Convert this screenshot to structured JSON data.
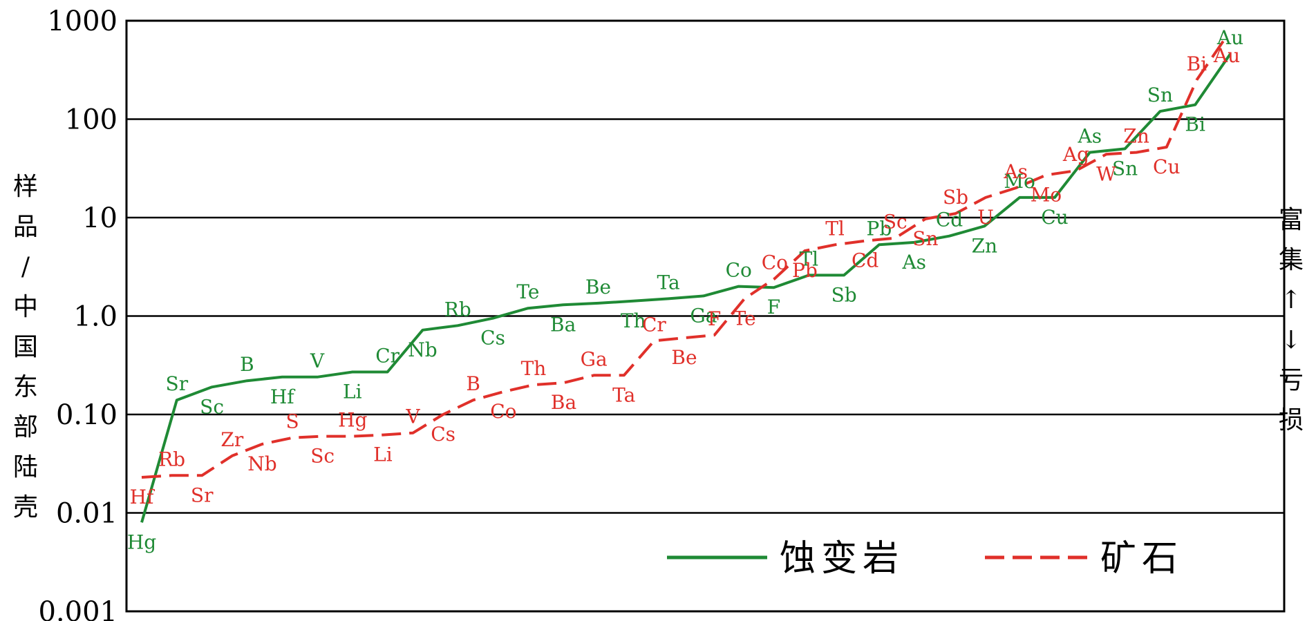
{
  "chart_data": {
    "type": "line",
    "scale": "log",
    "ylim": [
      0.001,
      1000
    ],
    "y_ticks": [
      "1000",
      "100",
      "10",
      "1.0",
      "0.10",
      "0.01",
      "0.001"
    ],
    "ylabel_chars": [
      "样",
      "品",
      "/",
      "中",
      "国",
      "东",
      "部",
      "陆",
      "壳"
    ],
    "right_label_chars": [
      "富",
      "集",
      "↑",
      "↓",
      "亏",
      "损"
    ],
    "grid": true,
    "legend_position": "bottom-right",
    "colors": {
      "altered_rock": "#1f8a35",
      "ore": "#e0302a"
    },
    "series": [
      {
        "name": "蚀变岩",
        "style": "solid",
        "points": [
          {
            "label": "Hg",
            "value": 0.008
          },
          {
            "label": "Sr",
            "value": 0.14
          },
          {
            "label": "Sc",
            "value": 0.19
          },
          {
            "label": "B",
            "value": 0.22
          },
          {
            "label": "Hf",
            "value": 0.24
          },
          {
            "label": "V",
            "value": 0.24
          },
          {
            "label": "Li",
            "value": 0.27
          },
          {
            "label": "Cr",
            "value": 0.27
          },
          {
            "label": "Nb",
            "value": 0.72
          },
          {
            "label": "Rb",
            "value": 0.8
          },
          {
            "label": "Cs",
            "value": 0.95
          },
          {
            "label": "Te",
            "value": 1.2
          },
          {
            "label": "Ba",
            "value": 1.3
          },
          {
            "label": "Be",
            "value": 1.35
          },
          {
            "label": "Th",
            "value": 1.42
          },
          {
            "label": "Ta",
            "value": 1.5
          },
          {
            "label": "Ga",
            "value": 1.6
          },
          {
            "label": "Co",
            "value": 2.0
          },
          {
            "label": "F",
            "value": 1.95
          },
          {
            "label": "Tl",
            "value": 2.6
          },
          {
            "label": "Sb",
            "value": 2.6
          },
          {
            "label": "Pb",
            "value": 5.3
          },
          {
            "label": "As",
            "value": 5.6
          },
          {
            "label": "Cd",
            "value": 6.5
          },
          {
            "label": "Zn",
            "value": 8.2
          },
          {
            "label": "Mo",
            "value": 16
          },
          {
            "label": "Cu",
            "value": 16
          },
          {
            "label": "As",
            "value": 46
          },
          {
            "label": "Sn",
            "value": 50
          },
          {
            "label": "Sn",
            "value": 120
          },
          {
            "label": "Bi",
            "value": 140
          },
          {
            "label": "Au",
            "value": 460
          }
        ]
      },
      {
        "name": "矿石",
        "style": "dashed",
        "points": [
          {
            "label": "Hf",
            "value": 0.023
          },
          {
            "label": "Rb",
            "value": 0.024
          },
          {
            "label": "Sr",
            "value": 0.024
          },
          {
            "label": "Zr",
            "value": 0.038
          },
          {
            "label": "Nb",
            "value": 0.05
          },
          {
            "label": "S",
            "value": 0.058
          },
          {
            "label": "Sc",
            "value": 0.06
          },
          {
            "label": "Hg",
            "value": 0.06
          },
          {
            "label": "Li",
            "value": 0.062
          },
          {
            "label": "V",
            "value": 0.065
          },
          {
            "label": "Cs",
            "value": 0.1
          },
          {
            "label": "B",
            "value": 0.14
          },
          {
            "label": "Co",
            "value": 0.17
          },
          {
            "label": "Th",
            "value": 0.2
          },
          {
            "label": "Ba",
            "value": 0.21
          },
          {
            "label": "Ga",
            "value": 0.25
          },
          {
            "label": "Ta",
            "value": 0.25
          },
          {
            "label": "Cr",
            "value": 0.56
          },
          {
            "label": "Be",
            "value": 0.6
          },
          {
            "label": "F",
            "value": 0.64
          },
          {
            "label": "Te",
            "value": 1.5
          },
          {
            "label": "Co",
            "value": 2.4
          },
          {
            "label": "Pb",
            "value": 4.6
          },
          {
            "label": "Tl",
            "value": 5.3
          },
          {
            "label": "Cd",
            "value": 5.8
          },
          {
            "label": "Sc",
            "value": 6.2
          },
          {
            "label": "Sn",
            "value": 9.7
          },
          {
            "label": "Sb",
            "value": 11
          },
          {
            "label": "U",
            "value": 16
          },
          {
            "label": "As",
            "value": 20
          },
          {
            "label": "Mo",
            "value": 27
          },
          {
            "label": "Ag",
            "value": 30
          },
          {
            "label": "W",
            "value": 44
          },
          {
            "label": "Zn",
            "value": 46
          },
          {
            "label": "Cu",
            "value": 52
          },
          {
            "label": "Bi",
            "value": 250
          },
          {
            "label": "Au",
            "value": 700
          }
        ]
      }
    ]
  }
}
